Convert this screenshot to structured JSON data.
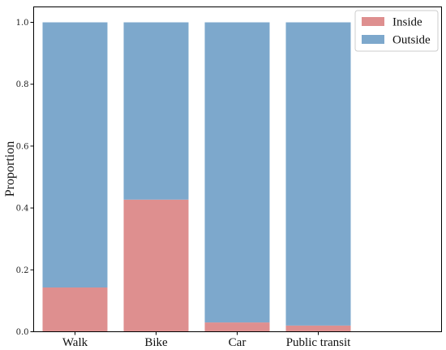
{
  "chart_data": {
    "type": "bar",
    "stacked": true,
    "categories": [
      "Walk",
      "Bike",
      "Car",
      "Public transit"
    ],
    "series": [
      {
        "name": "Inside",
        "values": [
          0.143,
          0.427,
          0.03,
          0.02
        ],
        "color": "#de8f8f"
      },
      {
        "name": "Outside",
        "values": [
          0.857,
          0.573,
          0.97,
          0.98
        ],
        "color": "#7da8cc"
      }
    ],
    "title": "",
    "xlabel": "",
    "ylabel": "Proportion",
    "ylim": [
      0,
      1.0
    ],
    "yticks": [
      "0.0",
      "0.2",
      "0.4",
      "0.6",
      "0.8",
      "1.0"
    ],
    "grid": false,
    "legend_position": "top-right"
  }
}
